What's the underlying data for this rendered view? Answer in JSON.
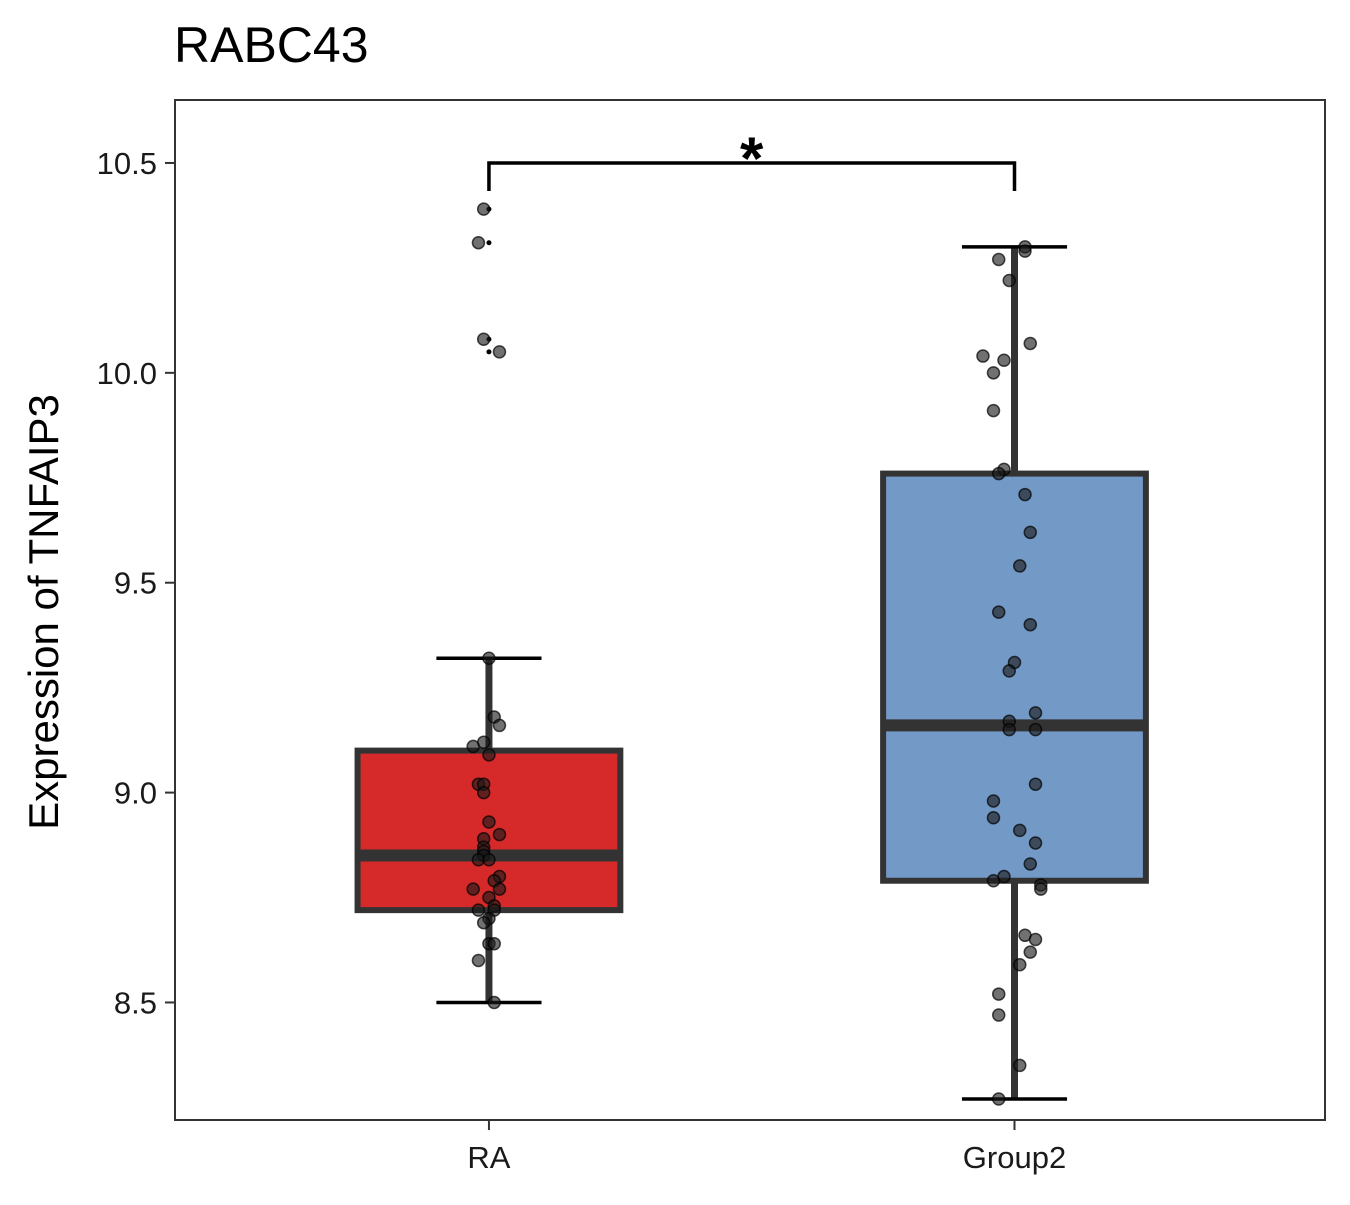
{
  "chart_data": {
    "type": "box",
    "title": "RABC43",
    "xlabel": "",
    "ylabel": "Expression of TNFAIP3",
    "ylim": [
      8.22,
      10.65
    ],
    "yticks": [
      8.5,
      9.0,
      9.5,
      10.0,
      10.5
    ],
    "ytick_labels": [
      "8.5",
      "9.0",
      "9.5",
      "10.0",
      "10.5"
    ],
    "grid": false,
    "categories": [
      "RA",
      "Group2"
    ],
    "colors": {
      "RA": "#d62a2a",
      "Group2": "#7399c6",
      "box_edge": "#333333",
      "point": "#333333"
    },
    "boxes": [
      {
        "name": "RA",
        "whisker_low": 8.5,
        "q1": 8.72,
        "median": 8.85,
        "q3": 9.1,
        "whisker_high": 9.32,
        "outliers": [
          10.39,
          10.31,
          10.08,
          10.05
        ]
      },
      {
        "name": "Group2",
        "whisker_low": 8.27,
        "q1": 8.79,
        "median": 9.16,
        "q3": 9.76,
        "whisker_high": 10.3,
        "outliers": []
      }
    ],
    "points": [
      {
        "group": "RA",
        "y": [
          10.39,
          10.31,
          10.08,
          10.05,
          9.32,
          9.18,
          9.16,
          9.12,
          9.11,
          9.09,
          9.02,
          9.02,
          9.0,
          8.93,
          8.9,
          8.89,
          8.87,
          8.86,
          8.85,
          8.84,
          8.84,
          8.8,
          8.79,
          8.77,
          8.77,
          8.75,
          8.73,
          8.72,
          8.72,
          8.7,
          8.69,
          8.64,
          8.64,
          8.6,
          8.5
        ],
        "jitter": [
          -0.01,
          -0.02,
          -0.01,
          0.02,
          0.0,
          0.01,
          0.02,
          -0.01,
          -0.03,
          -0.0,
          -0.02,
          -0.01,
          -0.01,
          0.0,
          0.02,
          -0.01,
          -0.01,
          -0.01,
          -0.01,
          -0.02,
          0.0,
          0.02,
          0.01,
          0.02,
          -0.03,
          0.0,
          0.01,
          0.01,
          -0.02,
          0.0,
          -0.01,
          0.0,
          0.01,
          -0.02,
          0.01
        ]
      },
      {
        "group": "Group2",
        "y": [
          10.3,
          10.29,
          10.27,
          10.22,
          10.07,
          10.04,
          10.03,
          10.0,
          9.91,
          9.77,
          9.76,
          9.71,
          9.62,
          9.54,
          9.43,
          9.4,
          9.31,
          9.29,
          9.19,
          9.17,
          9.15,
          9.15,
          9.02,
          8.98,
          8.94,
          8.91,
          8.88,
          8.83,
          8.8,
          8.79,
          8.78,
          8.77,
          8.66,
          8.65,
          8.62,
          8.59,
          8.52,
          8.47,
          8.35,
          8.27
        ],
        "jitter": [
          0.02,
          0.02,
          -0.03,
          -0.01,
          0.03,
          -0.06,
          -0.02,
          -0.04,
          -0.04,
          -0.02,
          -0.03,
          0.02,
          0.03,
          0.01,
          -0.03,
          0.03,
          0.0,
          -0.01,
          0.04,
          -0.01,
          0.04,
          -0.01,
          0.04,
          -0.04,
          -0.04,
          0.01,
          0.04,
          0.03,
          -0.02,
          -0.04,
          0.05,
          0.05,
          0.02,
          0.04,
          0.03,
          0.01,
          -0.03,
          -0.03,
          0.01,
          -0.03
        ]
      }
    ],
    "comparisons": [
      {
        "groups": [
          "RA",
          "Group2"
        ],
        "label": "*",
        "y": 10.5
      }
    ]
  }
}
